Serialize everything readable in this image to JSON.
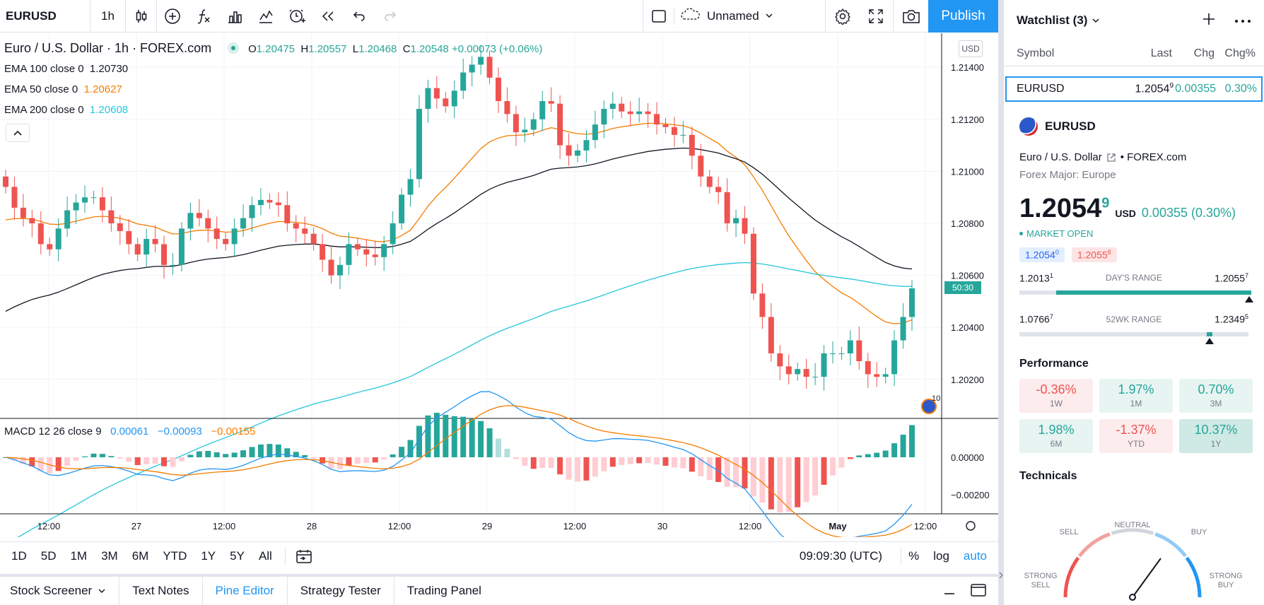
{
  "toolbar": {
    "symbol": "EURUSD",
    "interval": "1h",
    "layout_name": "Unnamed",
    "publish_label": "Publish",
    "icons": [
      "candles-icon",
      "add-indicator-icon",
      "fx-icon",
      "compare-icon",
      "templates-icon",
      "alert-icon",
      "replay-icon",
      "undo-icon",
      "redo-icon",
      "rectangle-icon",
      "cloud-icon",
      "chevron-down-icon",
      "settings-icon",
      "fullscreen-icon",
      "camera-icon"
    ]
  },
  "chart": {
    "title": "Euro / U.S. Dollar · 1h · FOREX.com",
    "ohlc": {
      "o_label": "O",
      "o": "1.20475",
      "h_label": "H",
      "h": "1.20557",
      "l_label": "L",
      "l": "1.20468",
      "c_label": "C",
      "c": "1.20548",
      "chg": "+0.00073 (+0.06%)"
    },
    "ema": [
      {
        "label": "EMA 100 close 0",
        "value": "1.20730",
        "color": "#131722"
      },
      {
        "label": "EMA 50 close 0",
        "value": "1.20627",
        "color": "#f57c00"
      },
      {
        "label": "EMA 200 close 0",
        "value": "1.20608",
        "color": "#26c6da"
      }
    ],
    "currency_badge": "USD",
    "countdown": "50:30",
    "price_ticks": [
      "1.21400",
      "1.21200",
      "1.21000",
      "1.20800",
      "1.20600",
      "1.20400",
      "1.20200"
    ],
    "macd": {
      "label": "MACD 12 26 close 9",
      "v1": "0.00061",
      "v2": "−0.00093",
      "v3": "−0.00155"
    },
    "macd_ticks": [
      "0.00000",
      "−0.00200"
    ],
    "time_ticks": [
      "12:00",
      "27",
      "12:00",
      "28",
      "12:00",
      "29",
      "12:00",
      "30",
      "12:00",
      "May",
      "12:00"
    ],
    "badge_text": "10"
  },
  "chart_data": {
    "type": "candlestick",
    "ylim": [
      1.2005,
      1.2152
    ],
    "candles_close_series": [
      1.2094,
      1.2086,
      1.2082,
      1.208,
      1.2072,
      1.207,
      1.2078,
      1.2085,
      1.2088,
      1.209,
      1.209,
      1.2085,
      1.208,
      1.2077,
      1.2072,
      1.2068,
      1.2074,
      1.2072,
      1.2064,
      1.2064,
      1.2078,
      1.2084,
      1.2082,
      1.2078,
      1.2074,
      1.2072,
      1.2078,
      1.2082,
      1.2087,
      1.2089,
      1.2088,
      1.2087,
      1.208,
      1.2078,
      1.2076,
      1.2072,
      1.2066,
      1.206,
      1.2064,
      1.2072,
      1.207,
      1.2068,
      1.2067,
      1.2072,
      1.208,
      1.2091,
      1.2097,
      1.2124,
      1.2132,
      1.2128,
      1.2125,
      1.2131,
      1.2138,
      1.2141,
      1.2144,
      1.2136,
      1.2127,
      1.2122,
      1.2115,
      1.2116,
      1.212,
      1.2127,
      1.2126,
      1.211,
      1.2106,
      1.2108,
      1.2112,
      1.2118,
      1.2124,
      1.2126,
      1.2123,
      1.2122,
      1.2123,
      1.2122,
      1.2118,
      1.2117,
      1.2114,
      1.2114,
      1.2106,
      1.2098,
      1.2094,
      1.2092,
      1.208,
      1.2082,
      1.2076,
      1.2053,
      1.2044,
      1.203,
      1.2025,
      1.2022,
      1.2024,
      1.2021,
      1.2021,
      1.203,
      1.203,
      1.203,
      1.2035,
      1.2027,
      1.2022,
      1.2021,
      1.2022,
      1.2035,
      1.2044,
      1.2055
    ]
  },
  "periods": [
    "1D",
    "5D",
    "1M",
    "3M",
    "6M",
    "YTD",
    "1Y",
    "5Y",
    "All"
  ],
  "status": {
    "time": "09:09:30 (UTC)",
    "percent": "%",
    "log": "log",
    "auto": "auto"
  },
  "bottom_tabs": [
    "Stock Screener",
    "Text Notes",
    "Pine Editor",
    "Strategy Tester",
    "Trading Panel"
  ],
  "watchlist": {
    "title": "Watchlist (3)",
    "cols": {
      "symbol": "Symbol",
      "last": "Last",
      "chg": "Chg",
      "chgp": "Chg%"
    },
    "row": {
      "symbol": "EURUSD",
      "last": "1.2054",
      "last_sup": "9",
      "chg": "0.00355",
      "chgp": "0.30%"
    }
  },
  "details": {
    "symbol": "EURUSD",
    "desc": "Euro / U.S. Dollar",
    "exchange": "• FOREX.com",
    "sub": "Forex Major: Europe",
    "price": "1.2054",
    "price_sup": "9",
    "currency": "USD",
    "change": "0.00355 (0.30%)",
    "market": "MARKET OPEN",
    "bid": "1.2054",
    "bid_sup": "0",
    "ask": "1.2055",
    "ask_sup": "8",
    "day_range": {
      "low": "1.2013",
      "low_sup": "1",
      "label": "DAY'S RANGE",
      "high": "1.2055",
      "high_sup": "7",
      "fill_start": 0.16,
      "fill_end": 1.0,
      "marker": 0.99
    },
    "wk_range": {
      "low": "1.0766",
      "low_sup": "7",
      "label": "52WK RANGE",
      "high": "1.2349",
      "high_sup": "5",
      "marker": 0.82
    },
    "performance_title": "Performance",
    "performance": [
      {
        "value": "-0.36%",
        "label": "1W",
        "tone": "neg"
      },
      {
        "value": "1.97%",
        "label": "1M",
        "tone": "pos"
      },
      {
        "value": "0.70%",
        "label": "3M",
        "tone": "pos"
      },
      {
        "value": "1.98%",
        "label": "6M",
        "tone": "pos"
      },
      {
        "value": "-1.37%",
        "label": "YTD",
        "tone": "neg"
      },
      {
        "value": "10.37%",
        "label": "1Y",
        "tone": "pos2"
      }
    ],
    "technicals_title": "Technicals",
    "gauge": {
      "neutral": "NEUTRAL",
      "sell": "SELL",
      "buy": "BUY",
      "strong_sell_1": "STRONG",
      "strong_sell_2": "SELL",
      "strong_buy_1": "STRONG",
      "strong_buy_2": "BUY",
      "needle": 0.7
    }
  }
}
